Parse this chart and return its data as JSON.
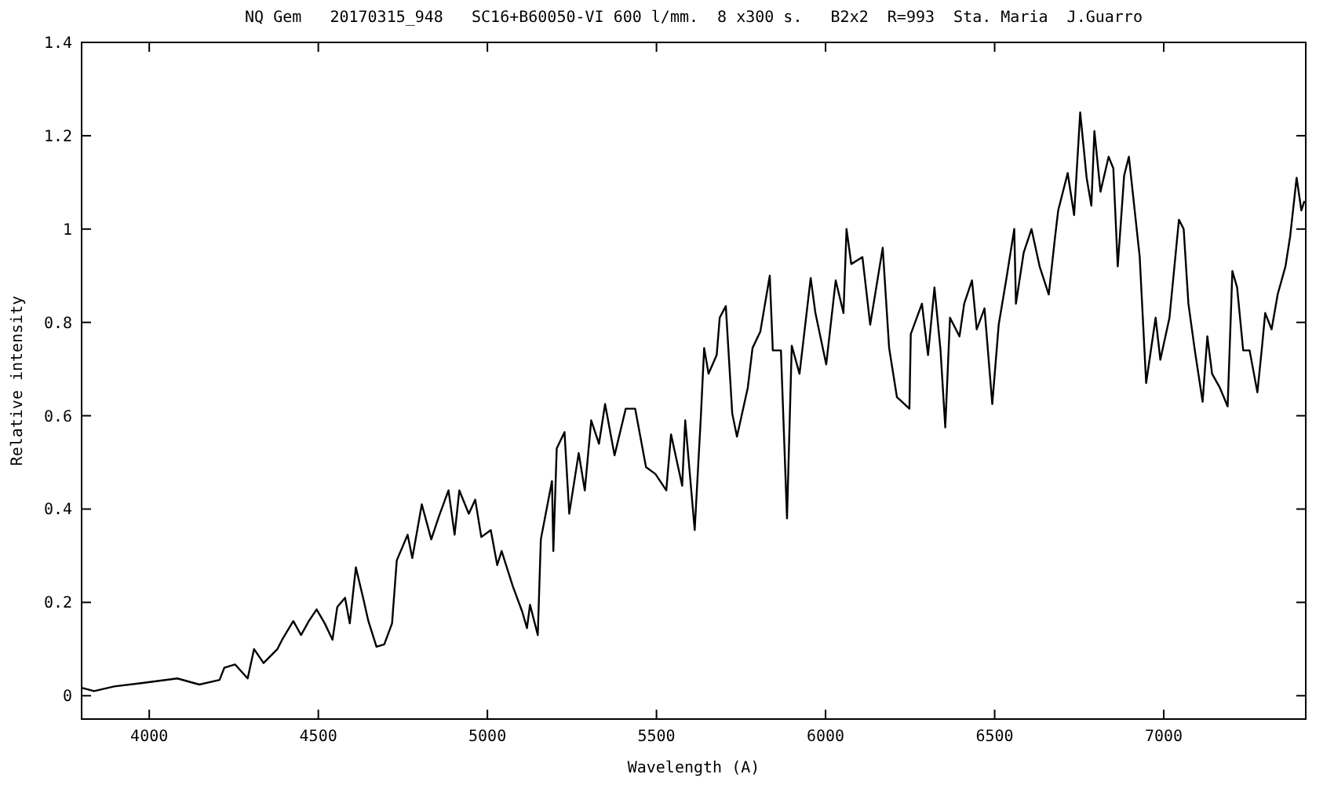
{
  "chart_data": {
    "type": "line",
    "title": "NQ Gem   20170315_948   SC16+B60050-VI 600 l/mm.  8 x300 s.   B2x2  R=993  Sta. Maria  J.Guarro",
    "xlabel": "Wavelength (A)",
    "ylabel": "Relative intensity",
    "xlim": [
      3800,
      7420
    ],
    "ylim": [
      -0.05,
      1.4
    ],
    "xticks": [
      4000,
      4500,
      5000,
      5500,
      6000,
      6500,
      7000
    ],
    "yticks": [
      0,
      0.2,
      0.4,
      0.6,
      0.8,
      1,
      1.2,
      1.4
    ],
    "marker": "none",
    "line_style": "solid",
    "series": [
      {
        "color": "#000000",
        "x": [
          3800,
          3837,
          3897,
          3976,
          4083,
          4148,
          4208,
          4222,
          4254,
          4291,
          4310,
          4338,
          4379,
          4393,
          4426,
          4449,
          4472,
          4495,
          4519,
          4542,
          4556,
          4579,
          4593,
          4611,
          4634,
          4648,
          4672,
          4695,
          4718,
          4732,
          4764,
          4778,
          4806,
          4834,
          4857,
          4885,
          4903,
          4917,
          4945,
          4964,
          4982,
          5010,
          5029,
          5042,
          5075,
          5103,
          5117,
          5126,
          5149,
          5158,
          5191,
          5195,
          5205,
          5228,
          5242,
          5270,
          5288,
          5307,
          5330,
          5348,
          5376,
          5409,
          5437,
          5469,
          5497,
          5529,
          5543,
          5576,
          5585,
          5613,
          5631,
          5641,
          5654,
          5678,
          5687,
          5705,
          5724,
          5738,
          5770,
          5784,
          5807,
          5835,
          5844,
          5868,
          5886,
          5900,
          5923,
          5956,
          5970,
          6002,
          6030,
          6053,
          6062,
          6076,
          6109,
          6132,
          6169,
          6188,
          6211,
          6248,
          6252,
          6285,
          6303,
          6322,
          6340,
          6354,
          6368,
          6396,
          6410,
          6433,
          6447,
          6470,
          6493,
          6512,
          6535,
          6558,
          6563,
          6586,
          6609,
          6633,
          6660,
          6679,
          6688,
          6716,
          6735,
          6753,
          6772,
          6786,
          6795,
          6813,
          6837,
          6851,
          6864,
          6883,
          6897,
          6929,
          6948,
          6976,
          6990,
          7017,
          7045,
          7059,
          7073,
          7092,
          7115,
          7129,
          7143,
          7166,
          7189,
          7203,
          7217,
          7235,
          7254,
          7277,
          7291,
          7300,
          7319,
          7337,
          7360,
          7374,
          7393,
          7407,
          7416
        ],
        "values": [
          0.017,
          0.01,
          0.02,
          0.027,
          0.037,
          0.024,
          0.034,
          0.06,
          0.067,
          0.037,
          0.1,
          0.07,
          0.1,
          0.12,
          0.16,
          0.13,
          0.16,
          0.185,
          0.155,
          0.12,
          0.19,
          0.21,
          0.155,
          0.275,
          0.205,
          0.16,
          0.105,
          0.11,
          0.155,
          0.29,
          0.345,
          0.295,
          0.41,
          0.335,
          0.385,
          0.44,
          0.345,
          0.44,
          0.39,
          0.42,
          0.34,
          0.355,
          0.28,
          0.31,
          0.235,
          0.18,
          0.145,
          0.195,
          0.13,
          0.335,
          0.46,
          0.31,
          0.53,
          0.565,
          0.39,
          0.52,
          0.44,
          0.59,
          0.54,
          0.625,
          0.515,
          0.615,
          0.615,
          0.49,
          0.475,
          0.44,
          0.56,
          0.45,
          0.59,
          0.355,
          0.595,
          0.745,
          0.69,
          0.73,
          0.81,
          0.835,
          0.605,
          0.555,
          0.66,
          0.745,
          0.78,
          0.9,
          0.74,
          0.74,
          0.38,
          0.75,
          0.69,
          0.895,
          0.82,
          0.71,
          0.89,
          0.82,
          1.0,
          0.925,
          0.94,
          0.795,
          0.96,
          0.745,
          0.64,
          0.615,
          0.775,
          0.84,
          0.73,
          0.875,
          0.74,
          0.575,
          0.81,
          0.77,
          0.84,
          0.89,
          0.785,
          0.83,
          0.625,
          0.795,
          0.895,
          1.0,
          0.84,
          0.95,
          1.0,
          0.92,
          0.86,
          0.985,
          1.04,
          1.12,
          1.03,
          1.25,
          1.11,
          1.05,
          1.21,
          1.08,
          1.155,
          1.13,
          0.92,
          1.115,
          1.155,
          0.94,
          0.67,
          0.81,
          0.72,
          0.81,
          1.02,
          1.0,
          0.84,
          0.74,
          0.63,
          0.77,
          0.69,
          0.66,
          0.62,
          0.91,
          0.875,
          0.74,
          0.74,
          0.65,
          0.75,
          0.82,
          0.785,
          0.86,
          0.92,
          0.985,
          1.11,
          1.04,
          1.06
        ]
      }
    ]
  }
}
